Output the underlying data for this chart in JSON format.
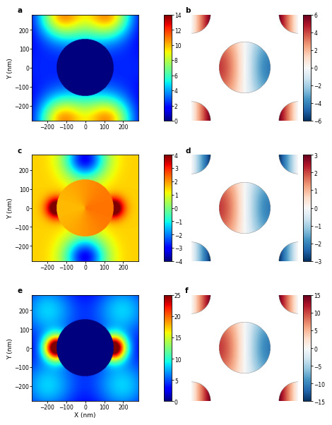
{
  "ylabel": "Y (nm)",
  "xlabel": "X (nm)",
  "tick_label_size": 5.5,
  "axis_label_size": 6.5,
  "panel_label_size": 7.5,
  "colorbar_label_size": 5.5,
  "panels_left": [
    {
      "label": "a",
      "vmin": 0,
      "vmax": 14,
      "ticks": [
        0,
        2,
        4,
        6,
        8,
        10,
        12,
        14
      ]
    },
    {
      "label": "c",
      "vmin": -4,
      "vmax": 4,
      "ticks": [
        -4,
        -3,
        -2,
        -1,
        0,
        1,
        2,
        3,
        4
      ]
    },
    {
      "label": "e",
      "vmin": 0,
      "vmax": 25,
      "ticks": [
        0,
        5,
        10,
        15,
        20,
        25
      ]
    }
  ],
  "panels_right": [
    {
      "label": "b",
      "vmin": -6,
      "vmax": 6,
      "ticks": [
        -6,
        -4,
        -2,
        0,
        2,
        4,
        6
      ]
    },
    {
      "label": "d",
      "vmin": -3,
      "vmax": 3,
      "ticks": [
        -3,
        -2,
        -1,
        0,
        1,
        2,
        3
      ]
    },
    {
      "label": "f",
      "vmin": -15,
      "vmax": 15,
      "ticks": [
        -15,
        -10,
        -5,
        0,
        5,
        10,
        15
      ]
    }
  ]
}
